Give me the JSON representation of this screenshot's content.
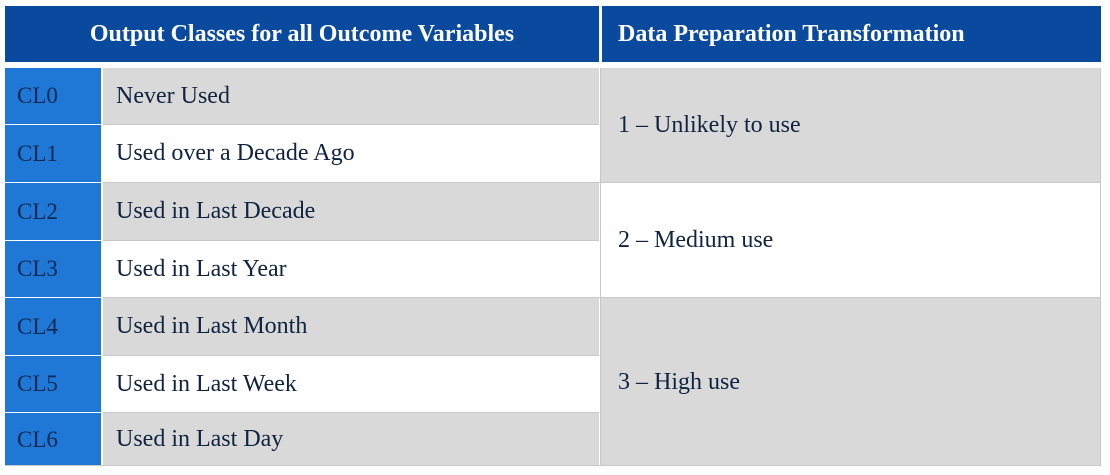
{
  "table": {
    "headers": [
      "Output Classes for all Outcome Variables",
      "Data Preparation Transformation"
    ],
    "rows": [
      {
        "code": "CL0",
        "label": "Never Used"
      },
      {
        "code": "CL1",
        "label": "Used over a Decade Ago"
      },
      {
        "code": "CL2",
        "label": "Used in Last Decade"
      },
      {
        "code": "CL3",
        "label": "Used in Last Year"
      },
      {
        "code": "CL4",
        "label": "Used in Last Month"
      },
      {
        "code": "CL5",
        "label": "Used in Last Week"
      },
      {
        "code": "CL6",
        "label": "Used in Last Day"
      }
    ],
    "transformations": [
      "1 – Unlikely to use",
      "2 – Medium use",
      "3 – High use"
    ]
  },
  "colors": {
    "header_bg": "#0a4a9e",
    "code_bg": "#1f77d6",
    "row_grey": "#d9d9d9",
    "row_white": "#ffffff"
  }
}
